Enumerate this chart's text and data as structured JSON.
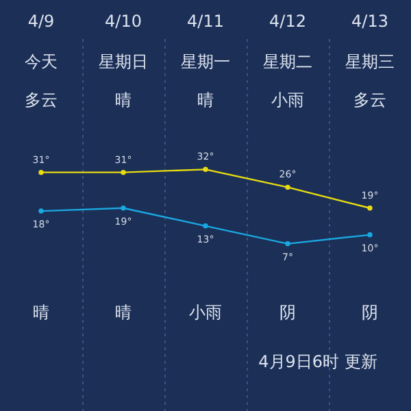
{
  "chart_data": {
    "type": "line",
    "categories": [
      "4/9",
      "4/10",
      "4/11",
      "4/12",
      "4/13"
    ],
    "series": [
      {
        "color": "#e8dc10",
        "values": [
          31,
          31,
          32,
          26,
          19
        ],
        "value_labels": [
          "31°",
          "31°",
          "32°",
          "26°",
          "19°"
        ]
      },
      {
        "color": "#1aa8e0",
        "values": [
          18,
          19,
          13,
          7,
          10
        ],
        "value_labels": [
          "18°",
          "19°",
          "13°",
          "7°",
          "10°"
        ]
      }
    ],
    "marker": "circle",
    "grid": "x",
    "annotations": [
      "今天",
      "星期日",
      "星期一",
      "星期二",
      "星期三",
      "多云",
      "晴",
      "晴",
      "小雨",
      "多云",
      "晴",
      "晴",
      "小雨",
      "阴",
      "阴",
      "4月9日6时 更新"
    ]
  }
}
